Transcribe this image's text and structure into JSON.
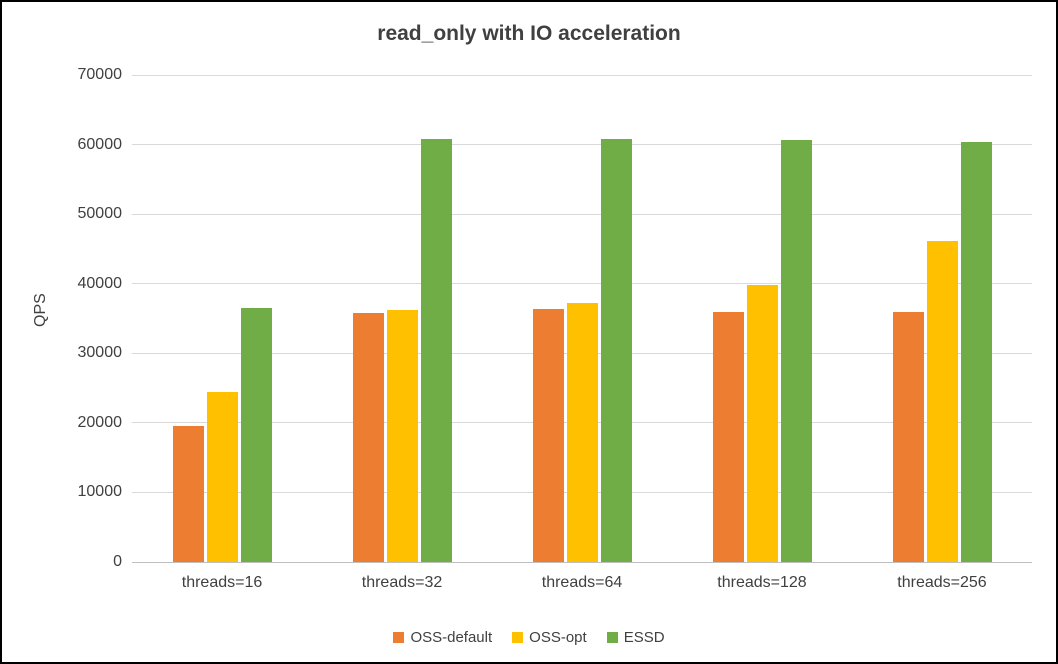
{
  "chart_data": {
    "type": "bar",
    "title": "read_only with IO acceleration",
    "xlabel": "",
    "ylabel": "QPS",
    "categories": [
      "threads=16",
      "threads=32",
      "threads=64",
      "threads=128",
      "threads=256"
    ],
    "series": [
      {
        "name": "OSS-default",
        "color": "#ED7D31",
        "values": [
          19500,
          35800,
          36300,
          36000,
          36000
        ]
      },
      {
        "name": "OSS-opt",
        "color": "#FFC000",
        "values": [
          24500,
          36200,
          37200,
          39800,
          46100
        ]
      },
      {
        "name": "ESSD",
        "color": "#70AD47",
        "values": [
          36500,
          60800,
          60800,
          60700,
          60400
        ]
      }
    ],
    "ylim": [
      0,
      70000
    ],
    "ytick_step": 10000,
    "grid": true,
    "legend_position": "bottom"
  },
  "colors": {
    "title_text": "#404040",
    "axis_text": "#404040",
    "gridline": "#d9d9d9",
    "frame_border": "#000000",
    "background": "#ffffff"
  }
}
